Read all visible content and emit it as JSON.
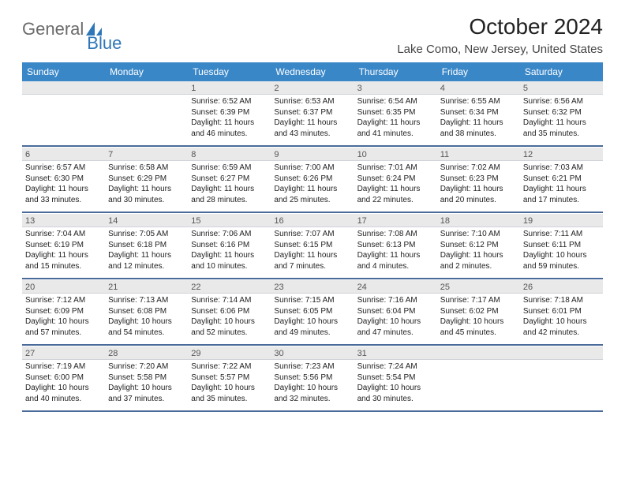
{
  "logo": {
    "part1": "General",
    "part2": "Blue"
  },
  "title": "October 2024",
  "location": "Lake Como, New Jersey, United States",
  "colors": {
    "header_bg": "#3a87c8",
    "header_text": "#ffffff",
    "daynum_bg": "#e9e9e9",
    "rule": "#4a6b9a",
    "logo_gray": "#6b6b6b",
    "logo_blue": "#2f76b8"
  },
  "day_names": [
    "Sunday",
    "Monday",
    "Tuesday",
    "Wednesday",
    "Thursday",
    "Friday",
    "Saturday"
  ],
  "weeks": [
    [
      {
        "n": "",
        "sr": "",
        "ss": "",
        "dl1": "",
        "dl2": ""
      },
      {
        "n": "",
        "sr": "",
        "ss": "",
        "dl1": "",
        "dl2": ""
      },
      {
        "n": "1",
        "sr": "Sunrise: 6:52 AM",
        "ss": "Sunset: 6:39 PM",
        "dl1": "Daylight: 11 hours",
        "dl2": "and 46 minutes."
      },
      {
        "n": "2",
        "sr": "Sunrise: 6:53 AM",
        "ss": "Sunset: 6:37 PM",
        "dl1": "Daylight: 11 hours",
        "dl2": "and 43 minutes."
      },
      {
        "n": "3",
        "sr": "Sunrise: 6:54 AM",
        "ss": "Sunset: 6:35 PM",
        "dl1": "Daylight: 11 hours",
        "dl2": "and 41 minutes."
      },
      {
        "n": "4",
        "sr": "Sunrise: 6:55 AM",
        "ss": "Sunset: 6:34 PM",
        "dl1": "Daylight: 11 hours",
        "dl2": "and 38 minutes."
      },
      {
        "n": "5",
        "sr": "Sunrise: 6:56 AM",
        "ss": "Sunset: 6:32 PM",
        "dl1": "Daylight: 11 hours",
        "dl2": "and 35 minutes."
      }
    ],
    [
      {
        "n": "6",
        "sr": "Sunrise: 6:57 AM",
        "ss": "Sunset: 6:30 PM",
        "dl1": "Daylight: 11 hours",
        "dl2": "and 33 minutes."
      },
      {
        "n": "7",
        "sr": "Sunrise: 6:58 AM",
        "ss": "Sunset: 6:29 PM",
        "dl1": "Daylight: 11 hours",
        "dl2": "and 30 minutes."
      },
      {
        "n": "8",
        "sr": "Sunrise: 6:59 AM",
        "ss": "Sunset: 6:27 PM",
        "dl1": "Daylight: 11 hours",
        "dl2": "and 28 minutes."
      },
      {
        "n": "9",
        "sr": "Sunrise: 7:00 AM",
        "ss": "Sunset: 6:26 PM",
        "dl1": "Daylight: 11 hours",
        "dl2": "and 25 minutes."
      },
      {
        "n": "10",
        "sr": "Sunrise: 7:01 AM",
        "ss": "Sunset: 6:24 PM",
        "dl1": "Daylight: 11 hours",
        "dl2": "and 22 minutes."
      },
      {
        "n": "11",
        "sr": "Sunrise: 7:02 AM",
        "ss": "Sunset: 6:23 PM",
        "dl1": "Daylight: 11 hours",
        "dl2": "and 20 minutes."
      },
      {
        "n": "12",
        "sr": "Sunrise: 7:03 AM",
        "ss": "Sunset: 6:21 PM",
        "dl1": "Daylight: 11 hours",
        "dl2": "and 17 minutes."
      }
    ],
    [
      {
        "n": "13",
        "sr": "Sunrise: 7:04 AM",
        "ss": "Sunset: 6:19 PM",
        "dl1": "Daylight: 11 hours",
        "dl2": "and 15 minutes."
      },
      {
        "n": "14",
        "sr": "Sunrise: 7:05 AM",
        "ss": "Sunset: 6:18 PM",
        "dl1": "Daylight: 11 hours",
        "dl2": "and 12 minutes."
      },
      {
        "n": "15",
        "sr": "Sunrise: 7:06 AM",
        "ss": "Sunset: 6:16 PM",
        "dl1": "Daylight: 11 hours",
        "dl2": "and 10 minutes."
      },
      {
        "n": "16",
        "sr": "Sunrise: 7:07 AM",
        "ss": "Sunset: 6:15 PM",
        "dl1": "Daylight: 11 hours",
        "dl2": "and 7 minutes."
      },
      {
        "n": "17",
        "sr": "Sunrise: 7:08 AM",
        "ss": "Sunset: 6:13 PM",
        "dl1": "Daylight: 11 hours",
        "dl2": "and 4 minutes."
      },
      {
        "n": "18",
        "sr": "Sunrise: 7:10 AM",
        "ss": "Sunset: 6:12 PM",
        "dl1": "Daylight: 11 hours",
        "dl2": "and 2 minutes."
      },
      {
        "n": "19",
        "sr": "Sunrise: 7:11 AM",
        "ss": "Sunset: 6:11 PM",
        "dl1": "Daylight: 10 hours",
        "dl2": "and 59 minutes."
      }
    ],
    [
      {
        "n": "20",
        "sr": "Sunrise: 7:12 AM",
        "ss": "Sunset: 6:09 PM",
        "dl1": "Daylight: 10 hours",
        "dl2": "and 57 minutes."
      },
      {
        "n": "21",
        "sr": "Sunrise: 7:13 AM",
        "ss": "Sunset: 6:08 PM",
        "dl1": "Daylight: 10 hours",
        "dl2": "and 54 minutes."
      },
      {
        "n": "22",
        "sr": "Sunrise: 7:14 AM",
        "ss": "Sunset: 6:06 PM",
        "dl1": "Daylight: 10 hours",
        "dl2": "and 52 minutes."
      },
      {
        "n": "23",
        "sr": "Sunrise: 7:15 AM",
        "ss": "Sunset: 6:05 PM",
        "dl1": "Daylight: 10 hours",
        "dl2": "and 49 minutes."
      },
      {
        "n": "24",
        "sr": "Sunrise: 7:16 AM",
        "ss": "Sunset: 6:04 PM",
        "dl1": "Daylight: 10 hours",
        "dl2": "and 47 minutes."
      },
      {
        "n": "25",
        "sr": "Sunrise: 7:17 AM",
        "ss": "Sunset: 6:02 PM",
        "dl1": "Daylight: 10 hours",
        "dl2": "and 45 minutes."
      },
      {
        "n": "26",
        "sr": "Sunrise: 7:18 AM",
        "ss": "Sunset: 6:01 PM",
        "dl1": "Daylight: 10 hours",
        "dl2": "and 42 minutes."
      }
    ],
    [
      {
        "n": "27",
        "sr": "Sunrise: 7:19 AM",
        "ss": "Sunset: 6:00 PM",
        "dl1": "Daylight: 10 hours",
        "dl2": "and 40 minutes."
      },
      {
        "n": "28",
        "sr": "Sunrise: 7:20 AM",
        "ss": "Sunset: 5:58 PM",
        "dl1": "Daylight: 10 hours",
        "dl2": "and 37 minutes."
      },
      {
        "n": "29",
        "sr": "Sunrise: 7:22 AM",
        "ss": "Sunset: 5:57 PM",
        "dl1": "Daylight: 10 hours",
        "dl2": "and 35 minutes."
      },
      {
        "n": "30",
        "sr": "Sunrise: 7:23 AM",
        "ss": "Sunset: 5:56 PM",
        "dl1": "Daylight: 10 hours",
        "dl2": "and 32 minutes."
      },
      {
        "n": "31",
        "sr": "Sunrise: 7:24 AM",
        "ss": "Sunset: 5:54 PM",
        "dl1": "Daylight: 10 hours",
        "dl2": "and 30 minutes."
      },
      {
        "n": "",
        "sr": "",
        "ss": "",
        "dl1": "",
        "dl2": ""
      },
      {
        "n": "",
        "sr": "",
        "ss": "",
        "dl1": "",
        "dl2": ""
      }
    ]
  ]
}
